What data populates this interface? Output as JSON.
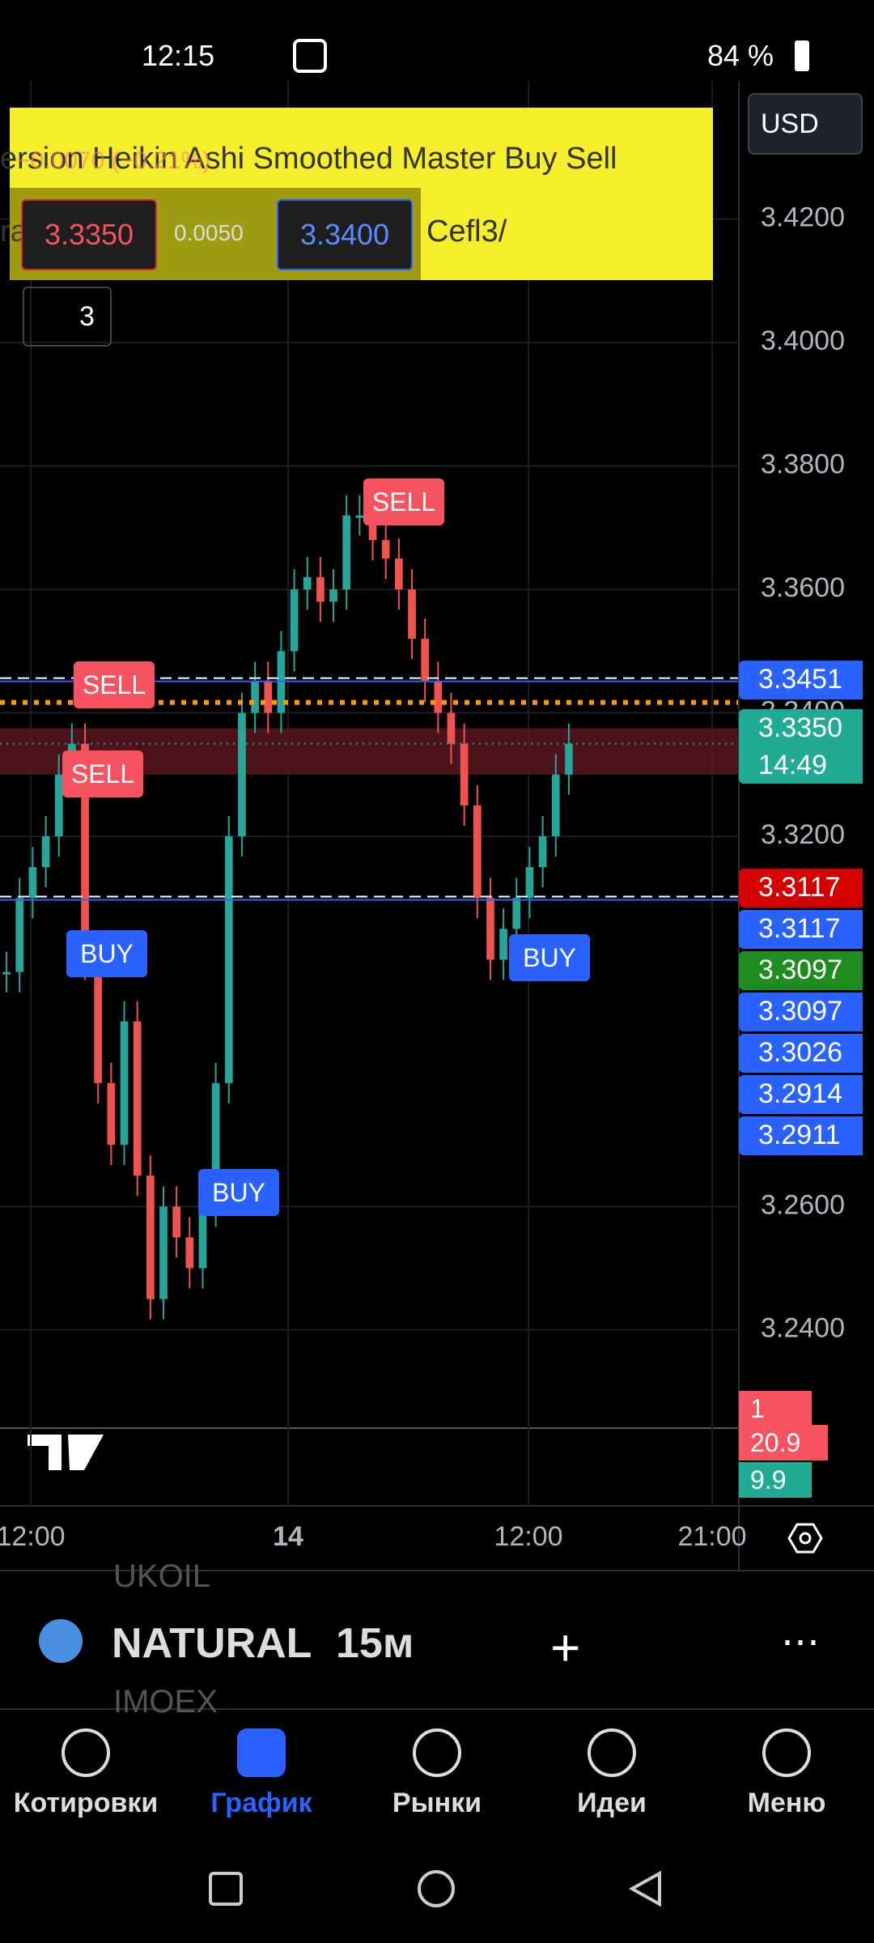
{
  "status_bar": {
    "time": "12:15",
    "battery": "84 %"
  },
  "indicator": {
    "title": "ersion Heikin Ashi Smoothed Master Buy Sell",
    "change": "−0.0070 (−0.21%)",
    "url_start": "ra",
    "url_end": "Cefl3/",
    "bid": "3.3350",
    "spread": "0.0050",
    "ask": "3.3400",
    "collapse_count": "3"
  },
  "currency": "USD",
  "chart_data": {
    "type": "candlestick",
    "up_color": "#26a69a",
    "down_color": "#ef5350",
    "values": [
      3.298,
      3.31,
      3.315,
      3.32,
      3.33,
      3.335,
      3.3,
      3.28,
      3.27,
      3.29,
      3.265,
      3.245,
      3.26,
      3.255,
      3.25,
      3.26,
      3.28,
      3.32,
      3.34,
      3.345,
      3.34,
      3.35,
      3.36,
      3.362,
      3.358,
      3.36,
      3.372,
      3.372,
      3.368,
      3.365,
      3.36,
      3.352,
      3.345,
      3.34,
      3.335,
      3.325,
      3.31,
      3.3,
      3.305,
      3.31,
      3.315,
      3.32,
      3.33,
      3.335
    ],
    "ylim": [
      3.2115,
      3.4424
    ],
    "yticks": [
      {
        "value": 3.42,
        "label": "3.4200"
      },
      {
        "value": 3.4,
        "label": "3.4000"
      },
      {
        "value": 3.38,
        "label": "3.3800"
      },
      {
        "value": 3.36,
        "label": "3.3600"
      },
      {
        "value": 3.34,
        "label": "3.3400"
      },
      {
        "value": 3.32,
        "label": "3.3200"
      },
      {
        "value": 3.26,
        "label": "3.2600"
      },
      {
        "value": 3.24,
        "label": "3.2400"
      }
    ],
    "levels": [
      {
        "value": 3.3451,
        "color": "#2962ff",
        "style": "solid"
      },
      {
        "value": 3.3451,
        "color": "#ffffff",
        "style": "dashed"
      },
      {
        "value": 3.3097,
        "color": "#2962ff",
        "style": "solid"
      },
      {
        "value": 3.3097,
        "color": "#ffffff",
        "style": "dashed"
      },
      {
        "value": 3.3417,
        "color": "#ff9800",
        "style": "dotted"
      },
      {
        "value": 3.335,
        "color": "#26a69a",
        "style": "dotted"
      }
    ],
    "zone": [
      3.3375,
      3.33
    ],
    "xticks": [
      "12:00",
      "14",
      "12:00",
      "21:00"
    ],
    "signals": [
      "SELL",
      "SELL",
      "SELL",
      "BUY",
      "BUY",
      "BUY"
    ],
    "price_badges": [
      {
        "label": "3.3451",
        "color": "#2962ff"
      },
      {
        "label": "3.3350",
        "sub": "14:49",
        "color": "#22ab94"
      },
      {
        "label": "3.3117",
        "color": "#d50000"
      },
      {
        "label": "3.3117",
        "color": "#2962ff"
      },
      {
        "label": "3.3097",
        "color": "#1e8c1e"
      },
      {
        "label": "3.3097",
        "color": "#2962ff"
      },
      {
        "label": "3.3026",
        "color": "#2962ff"
      },
      {
        "label": "3.2914",
        "color": "#2962ff"
      },
      {
        "label": "3.2911",
        "color": "#2962ff"
      }
    ],
    "volume_badges": [
      {
        "label": "1",
        "color": "#f7525f"
      },
      {
        "label": "20.9",
        "color": "#f7525f"
      },
      {
        "label": "9.9",
        "color": "#22ab94"
      }
    ]
  },
  "symbol": {
    "name": "NATURAL",
    "interval": "15м",
    "prev": "UKOIL",
    "next": "IMOEX"
  },
  "nav": [
    "Котировки",
    "График",
    "Рынки",
    "Идеи",
    "Меню"
  ]
}
